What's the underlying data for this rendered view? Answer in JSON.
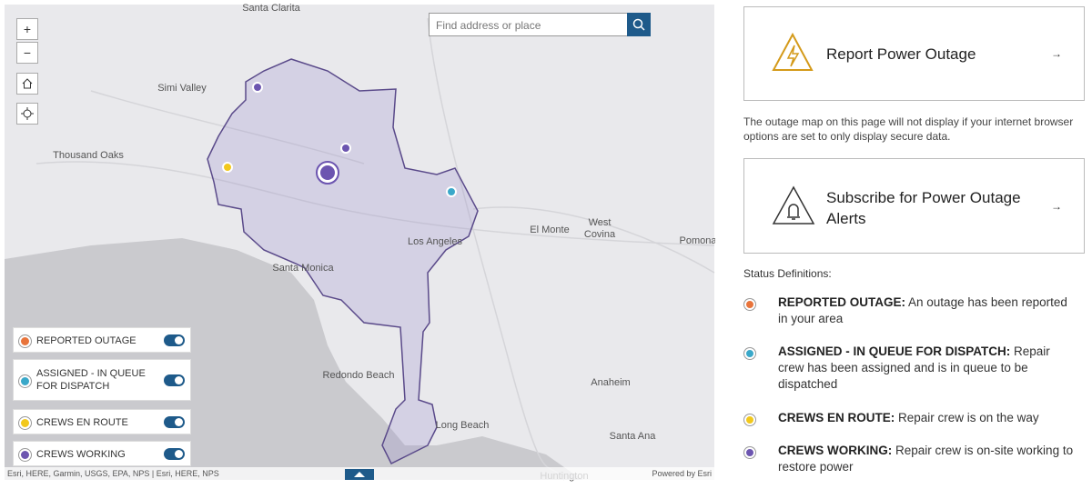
{
  "map": {
    "search_placeholder": "Find address or place",
    "zoom_in": "+",
    "zoom_out": "−",
    "places": [
      {
        "label": "Santa Clarita"
      },
      {
        "label": "Simi Valley"
      },
      {
        "label": "Thousand Oaks"
      },
      {
        "label": "Los Angeles"
      },
      {
        "label": "El Monte"
      },
      {
        "label": "West"
      },
      {
        "label": "Covina"
      },
      {
        "label": "Pomona"
      },
      {
        "label": "Santa Monica"
      },
      {
        "label": "Redondo Beach"
      },
      {
        "label": "Anaheim"
      },
      {
        "label": "Long Beach"
      },
      {
        "label": "Santa Ana"
      },
      {
        "label": "Huntington"
      }
    ],
    "legend": [
      {
        "label": "REPORTED OUTAGE",
        "color": "#e8743b"
      },
      {
        "label": "ASSIGNED - IN QUEUE FOR DISPATCH",
        "color": "#3aa8c9"
      },
      {
        "label": "CREWS EN ROUTE",
        "color": "#f2c81c"
      },
      {
        "label": "CREWS WORKING",
        "color": "#6c55b0"
      }
    ],
    "attribution": "Esri, HERE, Garmin, USGS, EPA, NPS | Esri, HERE, NPS",
    "powered_by": "Powered by Esri"
  },
  "panel": {
    "report": {
      "title": "Report Power Outage",
      "arrow": "→"
    },
    "note": "The outage map on this page will not display if your internet browser options are set to only display secure data.",
    "subscribe": {
      "title": "Subscribe for Power Outage Alerts",
      "arrow": "→"
    },
    "status_heading": "Status Definitions:",
    "definitions": [
      {
        "term": "REPORTED OUTAGE:",
        "description": "An outage has been reported in your area",
        "color": "#e8743b"
      },
      {
        "term": "ASSIGNED - IN QUEUE FOR DISPATCH:",
        "description": "Repair crew has been assigned and is in queue to be dispatched",
        "color": "#3aa8c9"
      },
      {
        "term": "CREWS EN ROUTE:",
        "description": "Repair crew is on the way",
        "color": "#f2c81c"
      },
      {
        "term": "CREWS WORKING:",
        "description": "Repair crew is on-site working to restore power",
        "color": "#6c55b0"
      }
    ]
  }
}
